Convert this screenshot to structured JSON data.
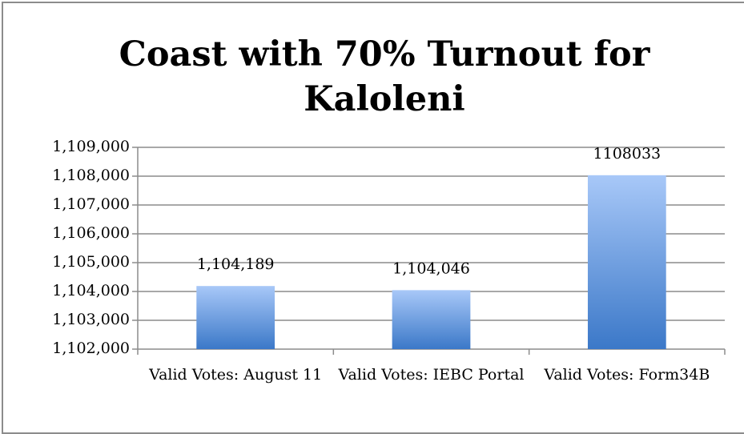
{
  "chart_data": {
    "type": "bar",
    "title": "Coast with 70% Turnout for Kaloleni",
    "categories": [
      "Valid Votes: August 11",
      "Valid Votes: IEBC Portal",
      "Valid Votes: Form34B"
    ],
    "values": [
      1104189,
      1104046,
      1108033
    ],
    "value_labels": [
      "1,104,189",
      "1,104,046",
      "1108033"
    ],
    "color": "#3b78c8",
    "ylim": [
      1102000,
      1109000
    ],
    "yticks": [
      {
        "value": 1102000,
        "label": "1,102,000"
      },
      {
        "value": 1103000,
        "label": "1,103,000"
      },
      {
        "value": 1104000,
        "label": "1,104,000"
      },
      {
        "value": 1105000,
        "label": "1,105,000"
      },
      {
        "value": 1106000,
        "label": "1,106,000"
      },
      {
        "value": 1107000,
        "label": "1,107,000"
      },
      {
        "value": 1108000,
        "label": "1,108,000"
      },
      {
        "value": 1109000,
        "label": "1,109,000"
      }
    ],
    "grid": true
  }
}
